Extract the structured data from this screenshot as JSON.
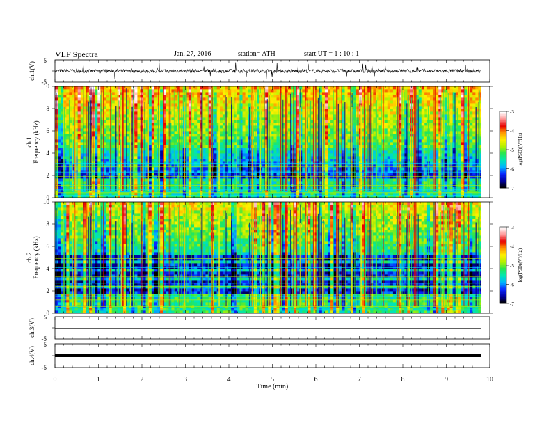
{
  "header": {
    "title": "VLF  Spectra",
    "date": "Jan. 27, 2016",
    "station": "station= ATH",
    "start": "start  UT  =   1  : 10 : 1"
  },
  "panels": {
    "ch1_wave": {
      "ylabel": "ch.1(V)",
      "ticks": [
        "5",
        "-5"
      ]
    },
    "ch1_spec": {
      "ylabel": "ch.1\nFrequency  (kHz)",
      "colorbar_label": "log(PSD)(V²/Hz)"
    },
    "ch2_spec": {
      "ylabel": "ch.2\nFrequency  (kHz)",
      "colorbar_label": "log(PSD)(V²/Hz)"
    },
    "ch3_wave": {
      "ylabel": "ch.3(V)",
      "ticks": [
        "5",
        "-5"
      ]
    },
    "ch4_wave": {
      "ylabel": "ch.4(V)",
      "ticks": [
        "5",
        "-5"
      ]
    }
  },
  "colors": {
    "colormap": [
      "#000000",
      "#0000a0",
      "#0a28ff",
      "#00b4ff",
      "#00e6b4",
      "#28e650",
      "#b4f000",
      "#fff000",
      "#ff9600",
      "#e60000",
      "#ff9696",
      "#ffffff"
    ]
  },
  "chart_data": [
    {
      "type": "line",
      "name": "ch1_wave",
      "ylabel": "ch.1(V)",
      "ylim": [
        -5,
        5
      ],
      "xlim": [
        0,
        10
      ],
      "baseline": 0,
      "x_end": 9.8
    },
    {
      "type": "heatmap",
      "name": "ch1_spec",
      "ylabel": "Frequency (kHz)",
      "xlim": [
        0,
        10
      ],
      "ylim": [
        0,
        10
      ],
      "yticks": [
        0,
        2,
        4,
        6,
        8,
        10
      ],
      "x_end": 9.8,
      "colorbar": {
        "label": "log(PSD)(V²/Hz)",
        "range": [
          -7,
          -3
        ],
        "ticks": [
          -3,
          -4,
          -5,
          -6,
          -7
        ]
      }
    },
    {
      "type": "heatmap",
      "name": "ch2_spec",
      "ylabel": "Frequency (kHz)",
      "xlim": [
        0,
        10
      ],
      "ylim": [
        0,
        10
      ],
      "yticks": [
        0,
        2,
        4,
        6,
        8,
        10
      ],
      "x_end": 9.8,
      "colorbar": {
        "label": "log(PSD)(V²/Hz)",
        "range": [
          -7,
          -3
        ],
        "ticks": [
          -3,
          -4,
          -5,
          -6,
          -7
        ]
      }
    },
    {
      "type": "line",
      "name": "ch3_wave",
      "ylabel": "ch.3(V)",
      "ylim": [
        -5,
        5
      ],
      "xlim": [
        0,
        10
      ],
      "baseline": -0.1,
      "x_end": 9.8
    },
    {
      "type": "line",
      "name": "ch4_wave",
      "ylabel": "ch.4(V)",
      "ylim": [
        -5,
        5
      ],
      "xlim": [
        0,
        10
      ],
      "baseline": 0,
      "x_end": 9.8
    }
  ],
  "xaxis": {
    "label": "Time  (min)",
    "ticks": [
      0,
      1,
      2,
      3,
      4,
      5,
      6,
      7,
      8,
      9,
      10
    ]
  }
}
